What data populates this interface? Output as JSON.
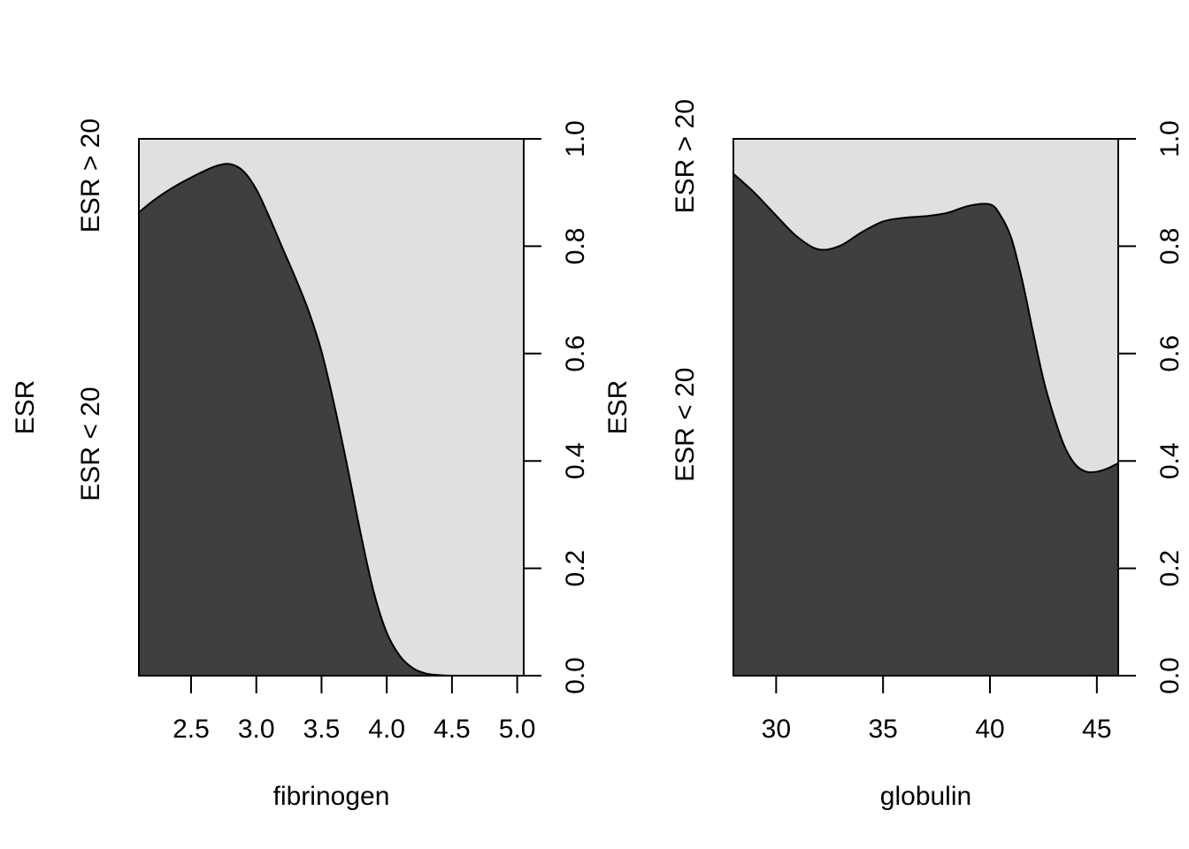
{
  "chart_data": [
    {
      "type": "area",
      "subtype": "conditional-density",
      "xlabel": "fibrinogen",
      "ylabel": "ESR",
      "category_labels": [
        "ESR < 20",
        "ESR > 20"
      ],
      "xlim": [
        2.1,
        5.05
      ],
      "ylim": [
        0,
        1
      ],
      "xticks": [
        "2.5",
        "3.0",
        "3.5",
        "4.0",
        "4.5",
        "5.0"
      ],
      "xtick_values": [
        2.5,
        3.0,
        3.5,
        4.0,
        4.5,
        5.0
      ],
      "yticks": [
        "0.0",
        "0.2",
        "0.4",
        "0.6",
        "0.8",
        "1.0"
      ],
      "ytick_values": [
        0,
        0.2,
        0.4,
        0.6,
        0.8,
        1.0
      ],
      "colors": {
        "lower": "#3f3f3f",
        "upper": "#e0e0e0"
      },
      "x": [
        2.1,
        2.2,
        2.3,
        2.4,
        2.5,
        2.6,
        2.7,
        2.8,
        2.9,
        3.0,
        3.1,
        3.2,
        3.3,
        3.4,
        3.5,
        3.6,
        3.7,
        3.8,
        3.9,
        4.0,
        4.1,
        4.2,
        4.3,
        4.4,
        4.5,
        4.6,
        4.7,
        4.8,
        4.9,
        5.0,
        5.05
      ],
      "values": [
        0.863,
        0.883,
        0.9,
        0.915,
        0.928,
        0.94,
        0.95,
        0.953,
        0.94,
        0.906,
        0.854,
        0.797,
        0.741,
        0.68,
        0.604,
        0.502,
        0.387,
        0.265,
        0.156,
        0.08,
        0.037,
        0.014,
        0.004,
        0.001,
        0.0,
        0.0,
        0.0,
        0.0,
        0.0,
        0.0,
        0.0
      ]
    },
    {
      "type": "area",
      "subtype": "conditional-density",
      "xlabel": "globulin",
      "ylabel": "ESR",
      "category_labels": [
        "ESR < 20",
        "ESR > 20"
      ],
      "xlim": [
        28,
        46
      ],
      "ylim": [
        0,
        1
      ],
      "xticks": [
        "30",
        "35",
        "40",
        "45"
      ],
      "xtick_values": [
        30,
        35,
        40,
        45
      ],
      "yticks": [
        "0.0",
        "0.2",
        "0.4",
        "0.6",
        "0.8",
        "1.0"
      ],
      "ytick_values": [
        0,
        0.2,
        0.4,
        0.6,
        0.8,
        1.0
      ],
      "colors": {
        "lower": "#3f3f3f",
        "upper": "#e0e0e0"
      },
      "x": [
        28,
        29,
        30,
        31,
        32,
        33,
        34,
        35,
        36,
        37,
        38,
        39,
        40,
        40.5,
        41,
        41.5,
        42,
        42.5,
        43,
        43.5,
        44,
        44.5,
        45,
        45.5,
        46
      ],
      "values": [
        0.935,
        0.899,
        0.857,
        0.817,
        0.794,
        0.801,
        0.826,
        0.846,
        0.853,
        0.856,
        0.862,
        0.875,
        0.878,
        0.857,
        0.815,
        0.738,
        0.643,
        0.552,
        0.482,
        0.426,
        0.393,
        0.38,
        0.38,
        0.386,
        0.396
      ]
    }
  ]
}
